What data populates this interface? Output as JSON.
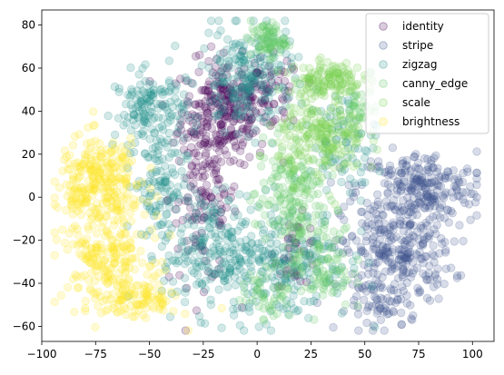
{
  "chart_data": {
    "type": "scatter",
    "title": "",
    "xlabel": "",
    "ylabel": "",
    "xlim": [
      -100,
      110
    ],
    "ylim": [
      -67,
      87
    ],
    "xticks": [
      -100,
      -75,
      -50,
      -25,
      0,
      25,
      50,
      75,
      100
    ],
    "xtick_labels": [
      "−100",
      "−75",
      "−50",
      "−25",
      "0",
      "25",
      "50",
      "75",
      "100"
    ],
    "yticks": [
      -60,
      -40,
      -20,
      0,
      20,
      40,
      60,
      80
    ],
    "ytick_labels": [
      "−60",
      "−40",
      "−20",
      "0",
      "20",
      "40",
      "60",
      "80"
    ],
    "grid": false,
    "legend_position": "top-right",
    "marker_alpha": 0.2,
    "series": [
      {
        "name": "identity",
        "color": "#440154",
        "clusters": [
          {
            "cx": -15,
            "cy": 40,
            "sx": 10,
            "sy": 12,
            "n": 260
          },
          {
            "cx": -25,
            "cy": 0,
            "sx": 8,
            "sy": 20,
            "n": 140
          },
          {
            "cx": 5,
            "cy": 48,
            "sx": 8,
            "sy": 8,
            "n": 70
          },
          {
            "cx": 18,
            "cy": -25,
            "sx": 5,
            "sy": 8,
            "n": 40
          }
        ]
      },
      {
        "name": "stripe",
        "color": "#3b528b",
        "clusters": [
          {
            "cx": 75,
            "cy": 5,
            "sx": 14,
            "sy": 8,
            "n": 230
          },
          {
            "cx": 65,
            "cy": -25,
            "sx": 13,
            "sy": 12,
            "n": 280
          },
          {
            "cx": 58,
            "cy": -50,
            "sx": 8,
            "sy": 6,
            "n": 60
          }
        ]
      },
      {
        "name": "zigzag",
        "color": "#21918c",
        "clusters": [
          {
            "cx": -50,
            "cy": 40,
            "sx": 8,
            "sy": 9,
            "n": 150
          },
          {
            "cx": -5,
            "cy": 55,
            "sx": 11,
            "sy": 12,
            "n": 210
          },
          {
            "cx": -45,
            "cy": 5,
            "sx": 6,
            "sy": 12,
            "n": 100
          },
          {
            "cx": -20,
            "cy": -25,
            "sx": 12,
            "sy": 14,
            "n": 230
          },
          {
            "cx": 15,
            "cy": -30,
            "sx": 14,
            "sy": 14,
            "n": 190
          },
          {
            "cx": 40,
            "cy": 25,
            "sx": 8,
            "sy": 12,
            "n": 80
          }
        ]
      },
      {
        "name": "canny_edge",
        "color": "#5ec962",
        "clusters": [
          {
            "cx": 5,
            "cy": 73,
            "sx": 4,
            "sy": 4,
            "n": 80
          },
          {
            "cx": 15,
            "cy": 0,
            "sx": 8,
            "sy": 14,
            "n": 170
          },
          {
            "cx": 30,
            "cy": -30,
            "sx": 7,
            "sy": 12,
            "n": 100
          },
          {
            "cx": 5,
            "cy": -45,
            "sx": 6,
            "sy": 6,
            "n": 50
          },
          {
            "cx": 48,
            "cy": 42,
            "sx": 4,
            "sy": 4,
            "n": 30
          }
        ]
      },
      {
        "name": "scale",
        "color": "#7ad151",
        "clusters": [
          {
            "cx": 33,
            "cy": 55,
            "sx": 8,
            "sy": 4,
            "n": 130
          },
          {
            "cx": 30,
            "cy": 28,
            "sx": 10,
            "sy": 10,
            "n": 220
          }
        ]
      },
      {
        "name": "brightness",
        "color": "#fde725",
        "clusters": [
          {
            "cx": -72,
            "cy": 10,
            "sx": 10,
            "sy": 9,
            "n": 200
          },
          {
            "cx": -70,
            "cy": -25,
            "sx": 10,
            "sy": 12,
            "n": 220
          },
          {
            "cx": -55,
            "cy": -47,
            "sx": 9,
            "sy": 5,
            "n": 110
          },
          {
            "cx": -85,
            "cy": 0,
            "sx": 5,
            "sy": 6,
            "n": 40
          }
        ]
      }
    ]
  }
}
